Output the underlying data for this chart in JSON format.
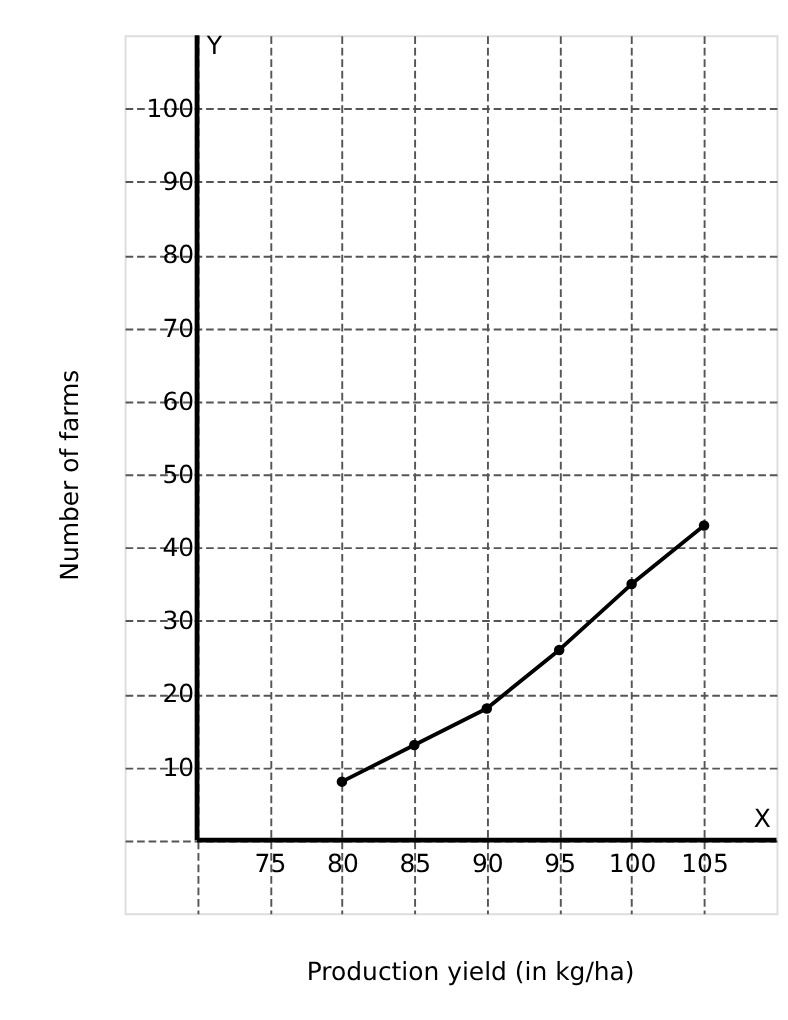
{
  "chart_data": {
    "type": "line",
    "xlabel": "Production yield (in kg/ha)",
    "ylabel": "Number of farms",
    "x": [
      80,
      85,
      90,
      95,
      100,
      105
    ],
    "series": [
      {
        "color": "#000000",
        "values": [
          8,
          13,
          18,
          26,
          35,
          43
        ]
      }
    ],
    "xlim": [
      65,
      110
    ],
    "ylim": [
      -10,
      110
    ],
    "xticks": [
      {
        "value": 70,
        "label": null
      },
      75,
      80,
      85,
      90,
      95,
      100,
      105
    ],
    "yticks": [
      {
        "value": 0,
        "label": null
      },
      10,
      20,
      30,
      40,
      50,
      60,
      70,
      80,
      90,
      100
    ],
    "annotations": [
      "Y",
      "X"
    ],
    "grid": true,
    "marker": "circle",
    "line_style": "solid"
  }
}
